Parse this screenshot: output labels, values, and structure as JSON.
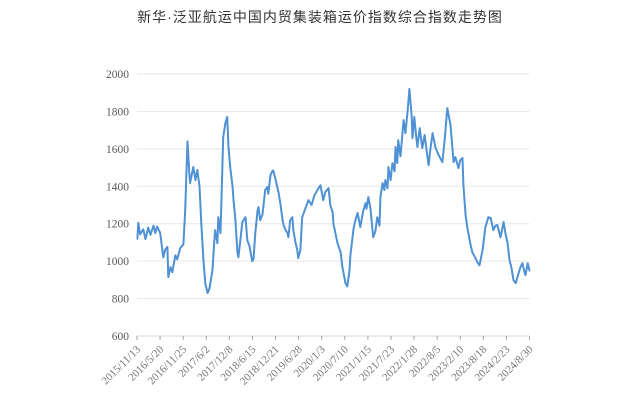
{
  "title": "新华·泛亚航运中国内贸集装箱运价指数综合指数走势图",
  "chart_data": {
    "type": "line",
    "title": "新华·泛亚航运中国内贸集装箱运价指数综合指数走势图",
    "xlabel": "",
    "ylabel": "",
    "ylim": [
      600,
      2000
    ],
    "y_ticks": [
      600,
      800,
      1000,
      1200,
      1400,
      1600,
      1800,
      2000
    ],
    "x_tick_labels": [
      "2015/11/13",
      "2016/5/20",
      "2016/11/25",
      "2017/6/2",
      "2017/12/8",
      "2018/6/15",
      "2018/12/21",
      "2019/6/28",
      "2020/1/3",
      "2020/7/10",
      "2021/1/15",
      "2021/7/23",
      "2022/1/28",
      "2022/8/5",
      "2023/2/10",
      "2023/8/18",
      "2024/2/23",
      "2024/8/30"
    ],
    "xlim_decimal_years": [
      2015.87,
      2024.66
    ],
    "grid": "horizontal",
    "legend": "none",
    "colors": {
      "line": "#4e91d5",
      "grid": "#e7e7e7",
      "axis": "#d4d4d4",
      "tick": "#a6a6a6",
      "y_label": "#595959",
      "x_label": "#757575",
      "title": "#333333"
    },
    "series": [
      {
        "name": "综合指数",
        "x": [
          2015.88,
          2015.9,
          2015.94,
          2016.01,
          2016.06,
          2016.12,
          2016.17,
          2016.24,
          2016.28,
          2016.32,
          2016.39,
          2016.46,
          2016.5,
          2016.55,
          2016.57,
          2016.62,
          2016.66,
          2016.73,
          2016.77,
          2016.84,
          2016.91,
          2016.95,
          2017.0,
          2017.04,
          2017.06,
          2017.13,
          2017.18,
          2017.22,
          2017.27,
          2017.31,
          2017.36,
          2017.4,
          2017.45,
          2017.49,
          2017.56,
          2017.6,
          2017.62,
          2017.67,
          2017.69,
          2017.74,
          2017.78,
          2017.8,
          2017.85,
          2017.89,
          2017.92,
          2017.96,
          2018.01,
          2018.03,
          2018.07,
          2018.12,
          2018.14,
          2018.18,
          2018.23,
          2018.3,
          2018.34,
          2018.39,
          2018.45,
          2018.48,
          2018.52,
          2018.57,
          2018.59,
          2018.63,
          2018.68,
          2018.74,
          2018.79,
          2018.81,
          2018.86,
          2018.9,
          2018.92,
          2018.97,
          2019.04,
          2019.08,
          2019.13,
          2019.15,
          2019.19,
          2019.24,
          2019.26,
          2019.3,
          2019.35,
          2019.37,
          2019.42,
          2019.46,
          2019.48,
          2019.53,
          2019.57,
          2019.64,
          2019.71,
          2019.78,
          2019.84,
          2019.91,
          2019.98,
          2020.04,
          2020.09,
          2020.16,
          2020.2,
          2020.25,
          2020.27,
          2020.36,
          2020.43,
          2020.47,
          2020.54,
          2020.58,
          2020.63,
          2020.65,
          2020.72,
          2020.76,
          2020.81,
          2020.87,
          2020.94,
          2020.99,
          2021.01,
          2021.05,
          2021.1,
          2021.16,
          2021.21,
          2021.25,
          2021.3,
          2021.32,
          2021.37,
          2021.41,
          2021.43,
          2021.48,
          2021.5,
          2021.55,
          2021.59,
          2021.64,
          2021.66,
          2021.7,
          2021.72,
          2021.77,
          2021.84,
          2021.88,
          2021.93,
          2021.97,
          2022.02,
          2022.04,
          2022.08,
          2022.13,
          2022.15,
          2022.2,
          2022.26,
          2022.31,
          2022.35,
          2022.4,
          2022.44,
          2022.49,
          2022.55,
          2022.6,
          2022.64,
          2022.71,
          2022.76,
          2022.82,
          2022.89,
          2022.96,
          2023.0,
          2023.07,
          2023.11,
          2023.16,
          2023.18,
          2023.23,
          2023.27,
          2023.34,
          2023.38,
          2023.45,
          2023.5,
          2023.54,
          2023.61,
          2023.67,
          2023.74,
          2023.79,
          2023.85,
          2023.9,
          2023.94,
          2024.01,
          2024.08,
          2024.12,
          2024.17,
          2024.21,
          2024.26,
          2024.3,
          2024.35,
          2024.41,
          2024.46,
          2024.5,
          2024.55,
          2024.57,
          2024.62,
          2024.66
        ],
        "y": [
          1120,
          1205,
          1143,
          1170,
          1117,
          1180,
          1140,
          1190,
          1150,
          1185,
          1150,
          1020,
          1060,
          1076,
          915,
          968,
          941,
          1032,
          1010,
          1070,
          1090,
          1273,
          1640,
          1480,
          1417,
          1503,
          1433,
          1487,
          1400,
          1200,
          1000,
          880,
          830,
          850,
          952,
          1100,
          1166,
          1096,
          1235,
          1150,
          1487,
          1663,
          1738,
          1770,
          1610,
          1497,
          1396,
          1326,
          1235,
          1043,
          1021,
          1100,
          1209,
          1235,
          1112,
          1080,
          1000,
          1010,
          1150,
          1273,
          1289,
          1219,
          1250,
          1380,
          1396,
          1360,
          1460,
          1481,
          1485,
          1440,
          1364,
          1310,
          1219,
          1193,
          1170,
          1150,
          1128,
          1219,
          1235,
          1166,
          1100,
          1059,
          1016,
          1060,
          1235,
          1280,
          1326,
          1300,
          1350,
          1380,
          1406,
          1326,
          1370,
          1390,
          1300,
          1262,
          1198,
          1096,
          1048,
          968,
          882,
          865,
          950,
          1032,
          1176,
          1219,
          1257,
          1182,
          1273,
          1310,
          1280,
          1342,
          1280,
          1128,
          1160,
          1235,
          1190,
          1342,
          1417,
          1380,
          1433,
          1390,
          1503,
          1433,
          1524,
          1480,
          1610,
          1524,
          1647,
          1560,
          1754,
          1684,
          1800,
          1920,
          1780,
          1657,
          1770,
          1650,
          1610,
          1711,
          1604,
          1674,
          1600,
          1513,
          1600,
          1684,
          1610,
          1580,
          1560,
          1529,
          1650,
          1818,
          1727,
          1529,
          1556,
          1497,
          1540,
          1551,
          1406,
          1246,
          1176,
          1086,
          1048,
          1016,
          990,
          978,
          1060,
          1180,
          1235,
          1230,
          1166,
          1190,
          1193,
          1128,
          1209,
          1150,
          1096,
          1010,
          960,
          900,
          882,
          930,
          970,
          989,
          940,
          925,
          989,
          950
        ]
      }
    ]
  }
}
